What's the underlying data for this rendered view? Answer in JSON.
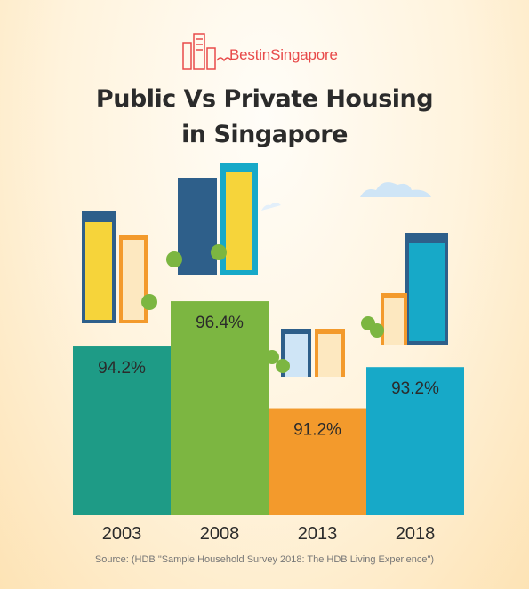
{
  "logo": {
    "text_bold": "Best",
    "text_light": "in",
    "text_end": "Singapore"
  },
  "title_line1": "Public Vs Private Housing",
  "title_line2": "in Singapore",
  "source": "Source: (HDB \"Sample Household Survey 2018: The HDB Living Experience\")",
  "colors": {
    "teal": "#1e9b86",
    "green": "#7cb641",
    "orange": "#f39a2c",
    "blue": "#17a9c8",
    "tower": "#2e5f8a",
    "accent": "#e84a4a"
  },
  "chart_data": {
    "type": "bar",
    "categories": [
      "2003",
      "2008",
      "2013",
      "2018"
    ],
    "values": [
      94.2,
      96.4,
      91.2,
      93.2
    ],
    "labels": [
      "94.2%",
      "96.4%",
      "91.2%",
      "93.2%"
    ],
    "ylim": [
      86,
      98
    ],
    "grid": false,
    "legend": "none"
  }
}
